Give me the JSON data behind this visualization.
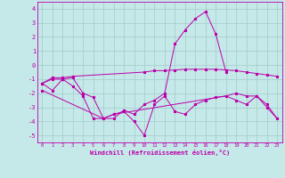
{
  "background_color": "#c5e8e8",
  "grid_color": "#a8d0d0",
  "line_color": "#bb00aa",
  "xlabel": "Windchill (Refroidissement éolien,°C)",
  "xlim": [
    -0.5,
    23.5
  ],
  "ylim": [
    -5.5,
    4.5
  ],
  "yticks": [
    -5,
    -4,
    -3,
    -2,
    -1,
    0,
    1,
    2,
    3,
    4
  ],
  "xticks": [
    0,
    1,
    2,
    3,
    4,
    5,
    6,
    7,
    8,
    9,
    10,
    11,
    12,
    13,
    14,
    15,
    16,
    17,
    18,
    19,
    20,
    21,
    22,
    23
  ],
  "line_peak": {
    "x": [
      0,
      1,
      2,
      3,
      4,
      5,
      6,
      7,
      8,
      9,
      10,
      11,
      12,
      13,
      14,
      15,
      16,
      17,
      18
    ],
    "y": [
      -1.3,
      -1.0,
      -1.0,
      -0.9,
      -2.0,
      -2.3,
      -3.8,
      -3.8,
      -3.2,
      -3.5,
      -2.8,
      -2.5,
      -2.0,
      1.5,
      2.5,
      3.3,
      3.8,
      2.2,
      -0.5
    ]
  },
  "line_flat": {
    "x": [
      0,
      1,
      2,
      3,
      10,
      11,
      12,
      13,
      14,
      15,
      16,
      17,
      18,
      19,
      20,
      21,
      22,
      23
    ],
    "y": [
      -1.3,
      -0.9,
      -0.9,
      -0.8,
      -0.5,
      -0.4,
      -0.4,
      -0.35,
      -0.3,
      -0.3,
      -0.3,
      -0.3,
      -0.35,
      -0.4,
      -0.5,
      -0.6,
      -0.7,
      -0.8
    ]
  },
  "line_zigzag": {
    "x": [
      0,
      1,
      2,
      3,
      4,
      5,
      6,
      7,
      8,
      9,
      10,
      11,
      12,
      13,
      14,
      15,
      16,
      17,
      18,
      19,
      20,
      21,
      22,
      23
    ],
    "y": [
      -1.3,
      -1.8,
      -1.0,
      -1.5,
      -2.2,
      -3.8,
      -3.8,
      -3.5,
      -3.3,
      -4.0,
      -5.0,
      -2.8,
      -2.2,
      -3.3,
      -3.5,
      -2.8,
      -2.5,
      -2.3,
      -2.2,
      -2.0,
      -2.2,
      -2.2,
      -3.0,
      -3.8
    ]
  },
  "line_diag": {
    "x": [
      0,
      6,
      7,
      18,
      19,
      20,
      21,
      22,
      23
    ],
    "y": [
      -1.8,
      -3.8,
      -3.5,
      -2.2,
      -2.5,
      -2.8,
      -2.2,
      -2.8,
      -3.8
    ]
  }
}
